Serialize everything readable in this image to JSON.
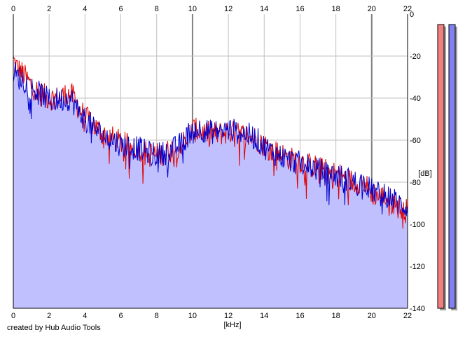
{
  "credit_text": "created by Hub Audio Tools",
  "chart_data": {
    "type": "area",
    "xlabel": "[kHz]",
    "ylabel": "[dB]",
    "xlim": [
      0,
      22
    ],
    "ylim": [
      -140,
      0
    ],
    "x_ticks": [
      "0",
      "2",
      "4",
      "6",
      "8",
      "10",
      "12",
      "14",
      "16",
      "18",
      "20",
      "22"
    ],
    "y_ticks": [
      "0",
      "-20",
      "-40",
      "-60",
      "-80",
      "-100",
      "-120",
      "-140"
    ],
    "grid": true,
    "colors": {
      "channel_1": "#e00000",
      "channel_2": "#0000d0",
      "fill": "#c0c0ff",
      "grid": "#c0c0c0",
      "major_grid": "#808080",
      "meter_1": "#f08080",
      "meter_2": "#8080f0"
    },
    "series": [
      {
        "channel": 1,
        "x": [
          0,
          0.25,
          0.5,
          1,
          1.5,
          2,
          2.5,
          3,
          3.3,
          3.6,
          4,
          4.5,
          5,
          5.5,
          6,
          6.5,
          7,
          7.5,
          8,
          8.5,
          9,
          9.5,
          10,
          10.5,
          11,
          11.5,
          12,
          12.5,
          13,
          13.5,
          14,
          14.5,
          15,
          15.5,
          16,
          16.5,
          17,
          17.5,
          18,
          18.5,
          19,
          19.5,
          20,
          20.5,
          21,
          21.5,
          22
        ],
        "values": [
          -22,
          -26,
          -28,
          -34,
          -38,
          -40,
          -40,
          -38,
          -39,
          -44,
          -49,
          -53,
          -57,
          -59,
          -61,
          -63,
          -64,
          -66,
          -67,
          -66,
          -64,
          -61,
          -55,
          -56,
          -57,
          -57,
          -56,
          -57,
          -58,
          -59,
          -62,
          -65,
          -67,
          -69,
          -70,
          -72,
          -73,
          -75,
          -76,
          -78,
          -80,
          -80,
          -85,
          -87,
          -88,
          -92,
          -94
        ]
      },
      {
        "channel": 2,
        "x": [
          0,
          0.25,
          0.5,
          1,
          1.5,
          2,
          2.5,
          3,
          3.3,
          3.6,
          4,
          4.5,
          5,
          5.5,
          6,
          6.5,
          7,
          7.5,
          8,
          8.5,
          9,
          9.5,
          10,
          10.5,
          11,
          11.5,
          12,
          12.5,
          13,
          13.5,
          14,
          14.5,
          15,
          15.5,
          16,
          16.5,
          17,
          17.5,
          18,
          18.5,
          19,
          19.5,
          20,
          20.5,
          21,
          21.5,
          22
        ],
        "values": [
          -27,
          -30,
          -31,
          -35,
          -38,
          -41,
          -41,
          -40,
          -41,
          -46,
          -50,
          -54,
          -58,
          -60,
          -62,
          -63,
          -64,
          -66,
          -67,
          -66,
          -64,
          -61,
          -54,
          -55,
          -56,
          -56,
          -55,
          -56,
          -57,
          -59,
          -63,
          -66,
          -68,
          -70,
          -71,
          -72,
          -74,
          -76,
          -77,
          -78,
          -80,
          -80,
          -84,
          -86,
          -87,
          -90,
          -92
        ]
      }
    ],
    "meters": [
      {
        "channel": 1,
        "top_db": -5
      },
      {
        "channel": 2,
        "top_db": -5
      }
    ]
  }
}
